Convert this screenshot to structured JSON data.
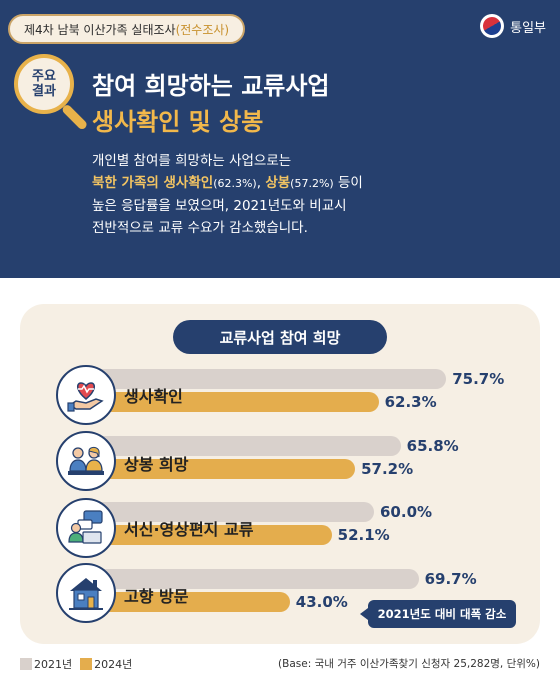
{
  "header": {
    "survey_main": "제4차 남북 이산가족 실태조사",
    "survey_sub": "(전수조사)",
    "ministry": "통일부",
    "badge_line1": "주요",
    "badge_line2": "결과",
    "title_line1": "참여 희망하는 교류사업",
    "title_line2": "생사확인 및 상봉",
    "desc": {
      "l1": "개인별 참여를 희망하는 사업으로는",
      "l2_b1": "북한 가족의 생사확인",
      "l2_s1": "(62.3%)",
      "l2_t1": ", ",
      "l2_b2": "상봉",
      "l2_s2": "(57.2%)",
      "l2_t2": " 등이",
      "l3": "높은 응답률을 보였으며,  2021년도와 비교시",
      "l4": "전반적으로 교류 수요가 감소했습니다."
    }
  },
  "chart_data": {
    "type": "bar",
    "orientation": "horizontal",
    "title": "교류사업 참여 희망",
    "categories": [
      "생사확인",
      "상봉 희망",
      "서신·영상편지 교류",
      "고향 방문"
    ],
    "icons": [
      "heart-hands-icon",
      "reunion-icon",
      "letter-video-icon",
      "hometown-house-icon"
    ],
    "series": [
      {
        "name": "2021년",
        "values": [
          75.7,
          65.8,
          60.0,
          69.7
        ],
        "labels": [
          "75.7%",
          "65.8%",
          "60.0%",
          "69.7%"
        ],
        "color": "#d9d1cc"
      },
      {
        "name": "2024년",
        "values": [
          62.3,
          57.2,
          52.1,
          43.0
        ],
        "labels": [
          "62.3%",
          "57.2%",
          "52.1%",
          "43.0%"
        ],
        "color": "#e4ad4d"
      }
    ],
    "unit": "%",
    "annotation": "2021년도 대비 대폭 감소",
    "legend_position": "bottom-left",
    "base_note": "(Base: 국내 거주 이산가족찾기 신청자 25,282명, 단위%)"
  },
  "colors": {
    "navy": "#26406e",
    "gold": "#e4ad4d",
    "gray_bar": "#d9d1cc",
    "card_bg": "#f6efe4"
  }
}
